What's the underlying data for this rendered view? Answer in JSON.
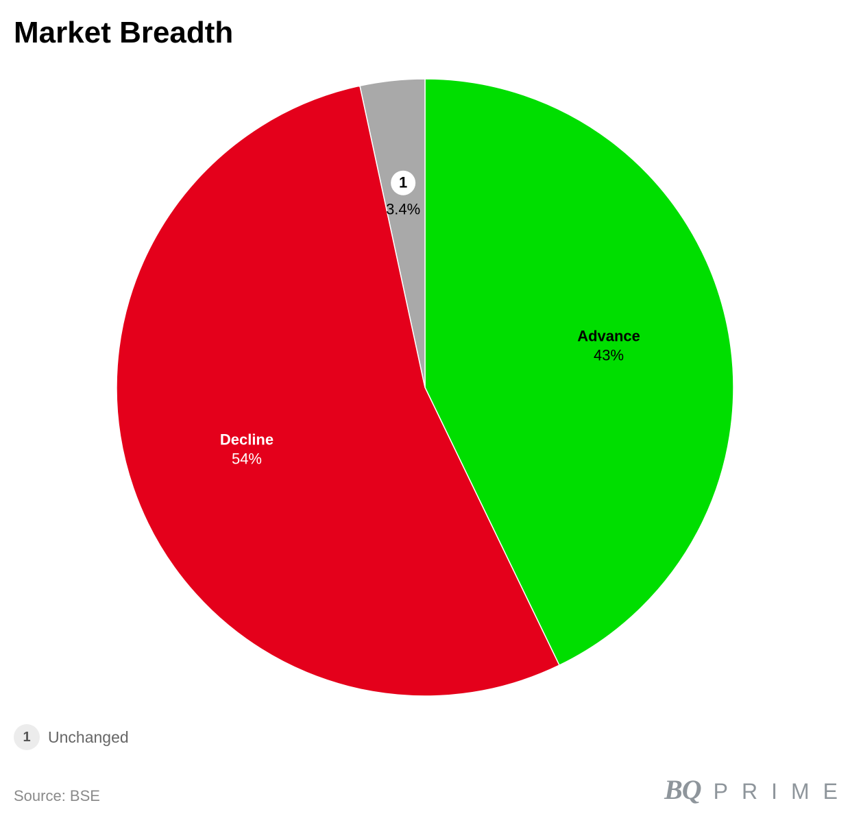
{
  "chart_data": {
    "type": "pie",
    "title": "Market Breadth",
    "slices": [
      {
        "label": "Advance",
        "value": 43,
        "display": "43%",
        "color": "#00de00",
        "label_color": "#000000"
      },
      {
        "label": "Decline",
        "value": 54,
        "display": "54%",
        "color": "#e4001b",
        "label_color": "#ffffff"
      },
      {
        "label": "Unchanged",
        "value": 3.4,
        "display": "3.4%",
        "color": "#a9a9a9",
        "label_color": "#000000",
        "footnote": "1"
      }
    ],
    "start_angle": "12 o'clock",
    "direction": "clockwise"
  },
  "legend": {
    "badge": "1",
    "label": "Unchanged"
  },
  "footer": {
    "source": "Source: BSE",
    "brand_mark": "BQ",
    "brand_word": "PRIME"
  }
}
